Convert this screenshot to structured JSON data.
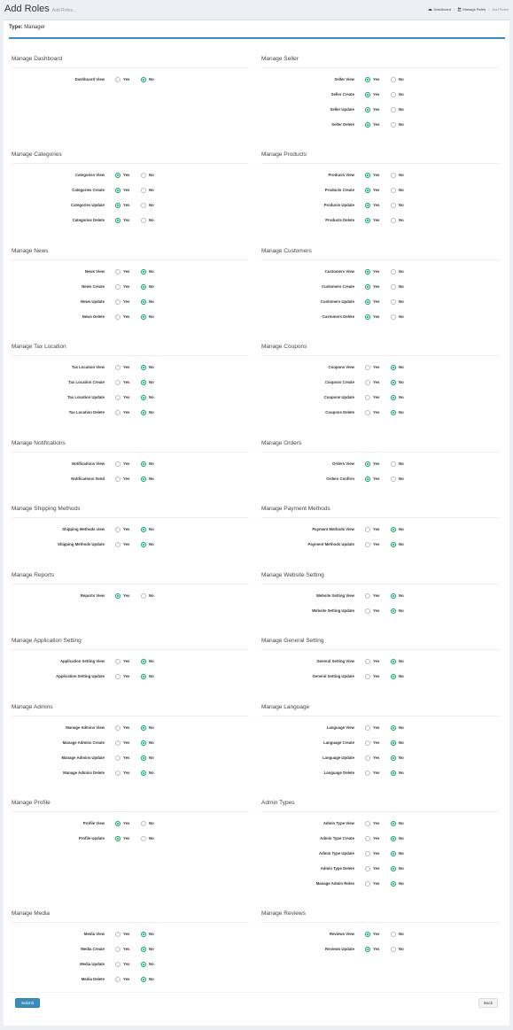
{
  "header": {
    "title": "Add Roles",
    "subtitle": "Add Roles...",
    "breadcrumb": [
      {
        "label": "Dashboard",
        "icon": "dashboard-icon"
      },
      {
        "label": "Manage Roles",
        "icon": "users-icon"
      },
      {
        "label": "Add Roles"
      }
    ]
  },
  "type": {
    "label": "Type:",
    "value": "Manager"
  },
  "option_labels": {
    "yes": "Yes",
    "no": "No"
  },
  "colors": {
    "accent": "#3c8dbc",
    "radio_checked": "#00a65a",
    "submit": "#3c8dbc"
  },
  "sections": [
    {
      "title": "Manage Dashboard",
      "rows": [
        {
          "label": "Dashboard View",
          "value": "No"
        }
      ]
    },
    {
      "title": "Manage Seller",
      "rows": [
        {
          "label": "Seller View",
          "value": "Yes"
        },
        {
          "label": "Seller Create",
          "value": "Yes"
        },
        {
          "label": "Seller Update",
          "value": "Yes"
        },
        {
          "label": "Seller Delete",
          "value": "Yes"
        }
      ]
    },
    {
      "title": "Manage Categories",
      "rows": [
        {
          "label": "Categories View",
          "value": "Yes"
        },
        {
          "label": "Categories Create",
          "value": "Yes"
        },
        {
          "label": "Categories Update",
          "value": "Yes"
        },
        {
          "label": "Categories Delete",
          "value": "Yes"
        }
      ]
    },
    {
      "title": "Manage Products",
      "rows": [
        {
          "label": "Products View",
          "value": "Yes"
        },
        {
          "label": "Products Create",
          "value": "Yes"
        },
        {
          "label": "Products Update",
          "value": "Yes"
        },
        {
          "label": "Products Delete",
          "value": "Yes"
        }
      ]
    },
    {
      "title": "Manage News",
      "rows": [
        {
          "label": "News View",
          "value": "No"
        },
        {
          "label": "News Create",
          "value": "No"
        },
        {
          "label": "News Update",
          "value": "No"
        },
        {
          "label": "News Delete",
          "value": "No"
        }
      ]
    },
    {
      "title": "Manage Customers",
      "rows": [
        {
          "label": "Customers View",
          "value": "Yes"
        },
        {
          "label": "Customers Create",
          "value": "Yes"
        },
        {
          "label": "Customers Update",
          "value": "Yes"
        },
        {
          "label": "Customers Delete",
          "value": "Yes"
        }
      ]
    },
    {
      "title": "Manage Tax Location",
      "rows": [
        {
          "label": "Tax Location View",
          "value": "No"
        },
        {
          "label": "Tax Location Create",
          "value": "No"
        },
        {
          "label": "Tax Location Update",
          "value": "No"
        },
        {
          "label": "Tax Location Delete",
          "value": "No"
        }
      ]
    },
    {
      "title": "Manage Coupons",
      "rows": [
        {
          "label": "Coupons View",
          "value": "No"
        },
        {
          "label": "Coupons Create",
          "value": "No"
        },
        {
          "label": "Coupons Update",
          "value": "No"
        },
        {
          "label": "Coupons Delete",
          "value": "No"
        }
      ]
    },
    {
      "title": "Manage Notifications",
      "rows": [
        {
          "label": "Notifications View",
          "value": "No"
        },
        {
          "label": "Notifications Send",
          "value": "No"
        }
      ]
    },
    {
      "title": "Manage Orders",
      "rows": [
        {
          "label": "Orders View",
          "value": "Yes"
        },
        {
          "label": "Orders Confirm",
          "value": "Yes"
        }
      ]
    },
    {
      "title": "Manage Shipping Methods",
      "rows": [
        {
          "label": "Shipping Methods view",
          "value": "No"
        },
        {
          "label": "Shipping Methods Update",
          "value": "No"
        }
      ]
    },
    {
      "title": "Manage Payment Methods",
      "rows": [
        {
          "label": "Payment Methods View",
          "value": "No"
        },
        {
          "label": "Payment Methods Update",
          "value": "No"
        }
      ]
    },
    {
      "title": "Manage Reports",
      "rows": [
        {
          "label": "Reports View",
          "value": "Yes"
        }
      ]
    },
    {
      "title": "Manage Website Setting",
      "rows": [
        {
          "label": "Website Setting View",
          "value": "No"
        },
        {
          "label": "Website Setting Update",
          "value": "No"
        }
      ]
    },
    {
      "title": "Manage Application Setting",
      "rows": [
        {
          "label": "Application Setting View",
          "value": "No"
        },
        {
          "label": "Application Setting Update",
          "value": "No"
        }
      ]
    },
    {
      "title": "Manage General Setting",
      "rows": [
        {
          "label": "General Setting View",
          "value": "No"
        },
        {
          "label": "General Setting Update",
          "value": "No"
        }
      ]
    },
    {
      "title": "Manage Admins",
      "rows": [
        {
          "label": "Manage Admins View",
          "value": "No"
        },
        {
          "label": "Manage Admins Create",
          "value": "No"
        },
        {
          "label": "Manage Admins Update",
          "value": "No"
        },
        {
          "label": "Manage Admins Delete",
          "value": "No"
        }
      ]
    },
    {
      "title": "Manage Language",
      "rows": [
        {
          "label": "Language View",
          "value": "No"
        },
        {
          "label": "Language Create",
          "value": "No"
        },
        {
          "label": "Language Update",
          "value": "No"
        },
        {
          "label": "Language Delete",
          "value": "No"
        }
      ]
    },
    {
      "title": "Manage Profile",
      "rows": [
        {
          "label": "Profile View",
          "value": "Yes"
        },
        {
          "label": "Profile Update",
          "value": "Yes"
        }
      ]
    },
    {
      "title": "Admin Types",
      "rows": [
        {
          "label": "Admin Type View",
          "value": "No"
        },
        {
          "label": "Admin Type Create",
          "value": "No"
        },
        {
          "label": "Admin Type Update",
          "value": "No"
        },
        {
          "label": "Admin Type Delete",
          "value": "No"
        },
        {
          "label": "Manage Admin Roles",
          "value": "No"
        }
      ]
    },
    {
      "title": "Manage Media",
      "rows": [
        {
          "label": "Media View",
          "value": "No"
        },
        {
          "label": "Media Create",
          "value": "No"
        },
        {
          "label": "Media Update",
          "value": "No"
        },
        {
          "label": "Media Delete",
          "value": "No"
        }
      ]
    },
    {
      "title": "Manage Reviews",
      "rows": [
        {
          "label": "Reviews View",
          "value": "Yes"
        },
        {
          "label": "Reviews Update",
          "value": "Yes"
        }
      ]
    }
  ],
  "buttons": {
    "submit": "Submit",
    "back": "Back"
  }
}
